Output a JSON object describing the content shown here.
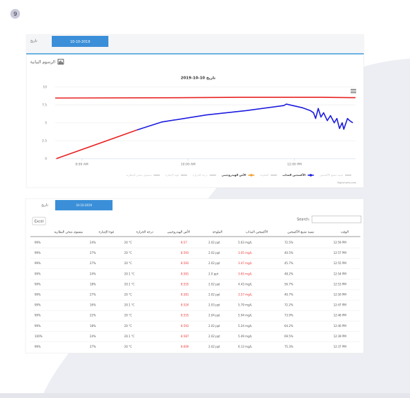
{
  "badge": "9",
  "top_panel": {
    "date_label": "تاريخ",
    "date_value": "10-10-2019",
    "section_title": "الرسوم البيانية"
  },
  "chart_data": {
    "type": "line",
    "title": "تاريخ 10-10-2019",
    "credits": "Highcharts.com",
    "xlim": [
      7.5,
      13.15
    ],
    "xticks": [
      {
        "value": 8,
        "label": "8:00 AM"
      },
      {
        "value": 10,
        "label": "10:00 AM"
      },
      {
        "value": 12,
        "label": "12:00 PM"
      }
    ],
    "ylim": [
      0,
      10
    ],
    "yticks": [
      0,
      2.5,
      5,
      7.5,
      10
    ],
    "grid": true,
    "series": [
      {
        "name": "نسبة تشبع الأكسجين",
        "color": "#c8c8c8",
        "hidden": true,
        "x": [],
        "values": []
      },
      {
        "name": "الأكسجين المذاب",
        "color": "#1a1ae0",
        "zones": [
          {
            "until": 9.04,
            "color": "#e82020"
          }
        ],
        "x": [
          7.52,
          9.04,
          9.5,
          10.35,
          11.1,
          11.8,
          11.85,
          12.15,
          12.3,
          12.36,
          12.4,
          12.45,
          12.5,
          12.55,
          12.62,
          12.68,
          12.75,
          12.8,
          12.85,
          12.9,
          12.93,
          13.0,
          13.04,
          13.1
        ],
        "values": [
          0,
          4.0,
          5.1,
          6.1,
          6.7,
          7.4,
          7.6,
          7.1,
          6.7,
          6.4,
          5.6,
          7.0,
          5.8,
          6.4,
          5.3,
          6.0,
          5.0,
          5.6,
          4.2,
          5.0,
          4.1,
          5.6,
          5.3,
          5.0
        ]
      },
      {
        "name": "الملوحة",
        "color": "#c8c8c8",
        "hidden": true,
        "x": [],
        "values": []
      },
      {
        "name": "الأس الهيدروجيني",
        "color": "#f0a030",
        "line_color": "#e82020",
        "x": [
          7.5,
          10,
          11,
          12.5,
          13.15
        ],
        "values": [
          8.45,
          8.5,
          8.55,
          8.55,
          8.5
        ]
      },
      {
        "name": "درجة الحرارة",
        "color": "#c8c8c8",
        "hidden": true,
        "x": [],
        "values": []
      },
      {
        "name": "قوة الإشارة",
        "color": "#c8c8c8",
        "hidden": true,
        "x": [],
        "values": []
      },
      {
        "name": "مستوى شحن البطارية",
        "color": "#c8c8c8",
        "hidden": true,
        "x": [],
        "values": []
      }
    ]
  },
  "table_panel": {
    "date_label": "تاريخ",
    "date_value": "10-10-2019",
    "excel": "Excel",
    "search": "Search:",
    "headers": [
      "الوقت",
      "نسبة تشبع الأكسجين",
      "الأكسجين المذاب",
      "الملوحة",
      "الأس الهيدروجيني",
      "درجة الحرارة",
      "قوة الإشارة",
      "مستوى شحن البطارية"
    ],
    "rows": [
      {
        "alerts": [
          4
        ],
        "cells": [
          "12:59 PM",
          "72.5%",
          "5.63 mg/L",
          "2.02 ppt",
          "8.57",
          "20 °C",
          "24%",
          "99%"
        ]
      },
      {
        "alerts": [
          2,
          4
        ],
        "cells": [
          "12:57 PM",
          "40.5%",
          "3.05 mg/L",
          "2.02 ppt",
          "8.593",
          "20 °C",
          "27%",
          "99%"
        ]
      },
      {
        "alerts": [
          2,
          4
        ],
        "cells": [
          "12:55 PM",
          "45.7%",
          "3.47 mg/L",
          "2.02 ppt",
          "8.593",
          "20 °C",
          "27%",
          "99%"
        ]
      },
      {
        "alerts": [
          2,
          4
        ],
        "cells": [
          "12:54 PM",
          "48.2%",
          "3.65 mg/L",
          "2.0 ppt",
          "8.581",
          "20.1 °C",
          "24%",
          "99%"
        ]
      },
      {
        "alerts": [
          4
        ],
        "cells": [
          "12:53 PM",
          "56.7%",
          "4.43 mg/L",
          "2.02 ppt",
          "8.555",
          "20.1 °C",
          "18%",
          "99%"
        ]
      },
      {
        "alerts": [
          2,
          4
        ],
        "cells": [
          "12:50 PM",
          "40.7%",
          "3.57 mg/L",
          "2.02 ppt",
          "8.581",
          "20 °C",
          "27%",
          "99%"
        ]
      },
      {
        "alerts": [
          4
        ],
        "cells": [
          "12:47 PM",
          "72.2%",
          "5.79 mg/L",
          "2.03 ppt",
          "8.524",
          "20.1 °C",
          "16%",
          "99%"
        ]
      },
      {
        "alerts": [
          4
        ],
        "cells": [
          "12:46 PM",
          "73.9%",
          "5.94 mg/L",
          "2.04 ppt",
          "8.555",
          "20 °C",
          "22%",
          "99%"
        ]
      },
      {
        "alerts": [
          4
        ],
        "cells": [
          "12:40 PM",
          "64.2%",
          "5.24 mg/L",
          "2.02 ppt",
          "8.593",
          "20 °C",
          "18%",
          "99%"
        ]
      },
      {
        "alerts": [
          4
        ],
        "cells": [
          "12:39 PM",
          "69.5%",
          "5.49 mg/L",
          "2.02 ppt",
          "8.587",
          "20.1 °C",
          "24%",
          "100%"
        ]
      },
      {
        "alerts": [
          4
        ],
        "cells": [
          "12:37 PM",
          "75.3%",
          "6.13 mg/L",
          "2.02 ppt",
          "8.609",
          "20 °C",
          "27%",
          "99%"
        ]
      }
    ]
  }
}
